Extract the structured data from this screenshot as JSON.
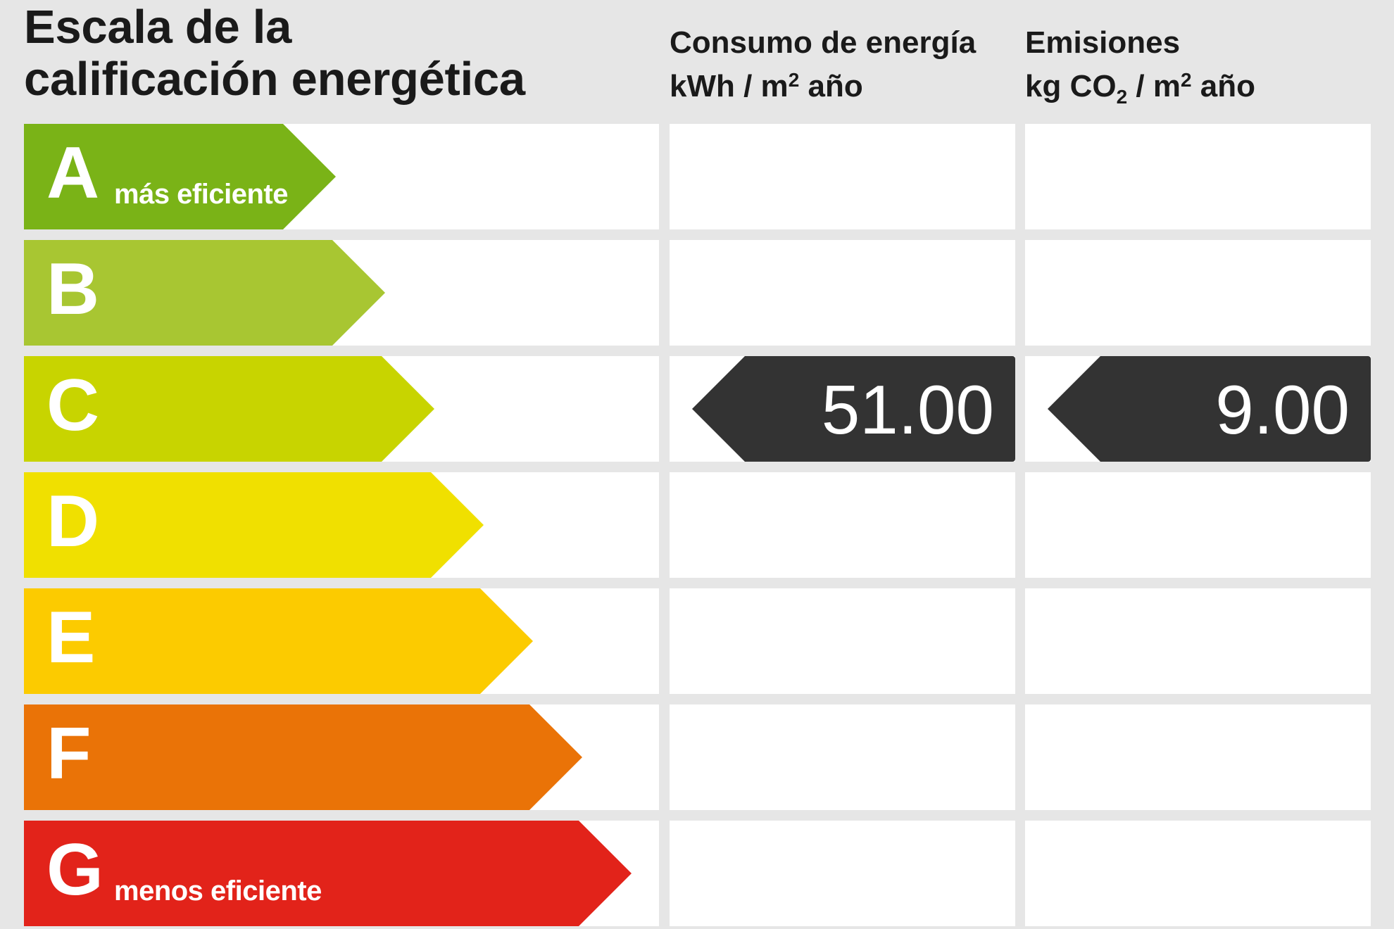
{
  "title": {
    "line1": "Escala de la",
    "line2": "calificación energética"
  },
  "columns": {
    "energy": {
      "line1": "Consumo de energía",
      "unit_prefix": "kWh / m",
      "unit_sup": "2",
      "unit_suffix": " año"
    },
    "emissions": {
      "line1": "Emisiones",
      "unit_prefix": "kg CO",
      "unit_sub": "2",
      "unit_middle": " / m",
      "unit_sup": "2",
      "unit_suffix": " año"
    }
  },
  "scale": [
    {
      "letter": "A",
      "sub": "más eficiente",
      "color": "#7ab317",
      "level": 1
    },
    {
      "letter": "B",
      "sub": "",
      "color": "#a8c632",
      "level": 2
    },
    {
      "letter": "C",
      "sub": "",
      "color": "#c8d400",
      "level": 3
    },
    {
      "letter": "D",
      "sub": "",
      "color": "#f0e000",
      "level": 4
    },
    {
      "letter": "E",
      "sub": "",
      "color": "#fccb00",
      "level": 5
    },
    {
      "letter": "F",
      "sub": "",
      "color": "#ea7307",
      "level": 6
    },
    {
      "letter": "G",
      "sub": "menos eficiente",
      "color": "#e2231a",
      "level": 7
    }
  ],
  "rating": {
    "class": "C",
    "energy_value": "51.00",
    "emissions_value": "9.00",
    "indicator_color": "#333333"
  }
}
